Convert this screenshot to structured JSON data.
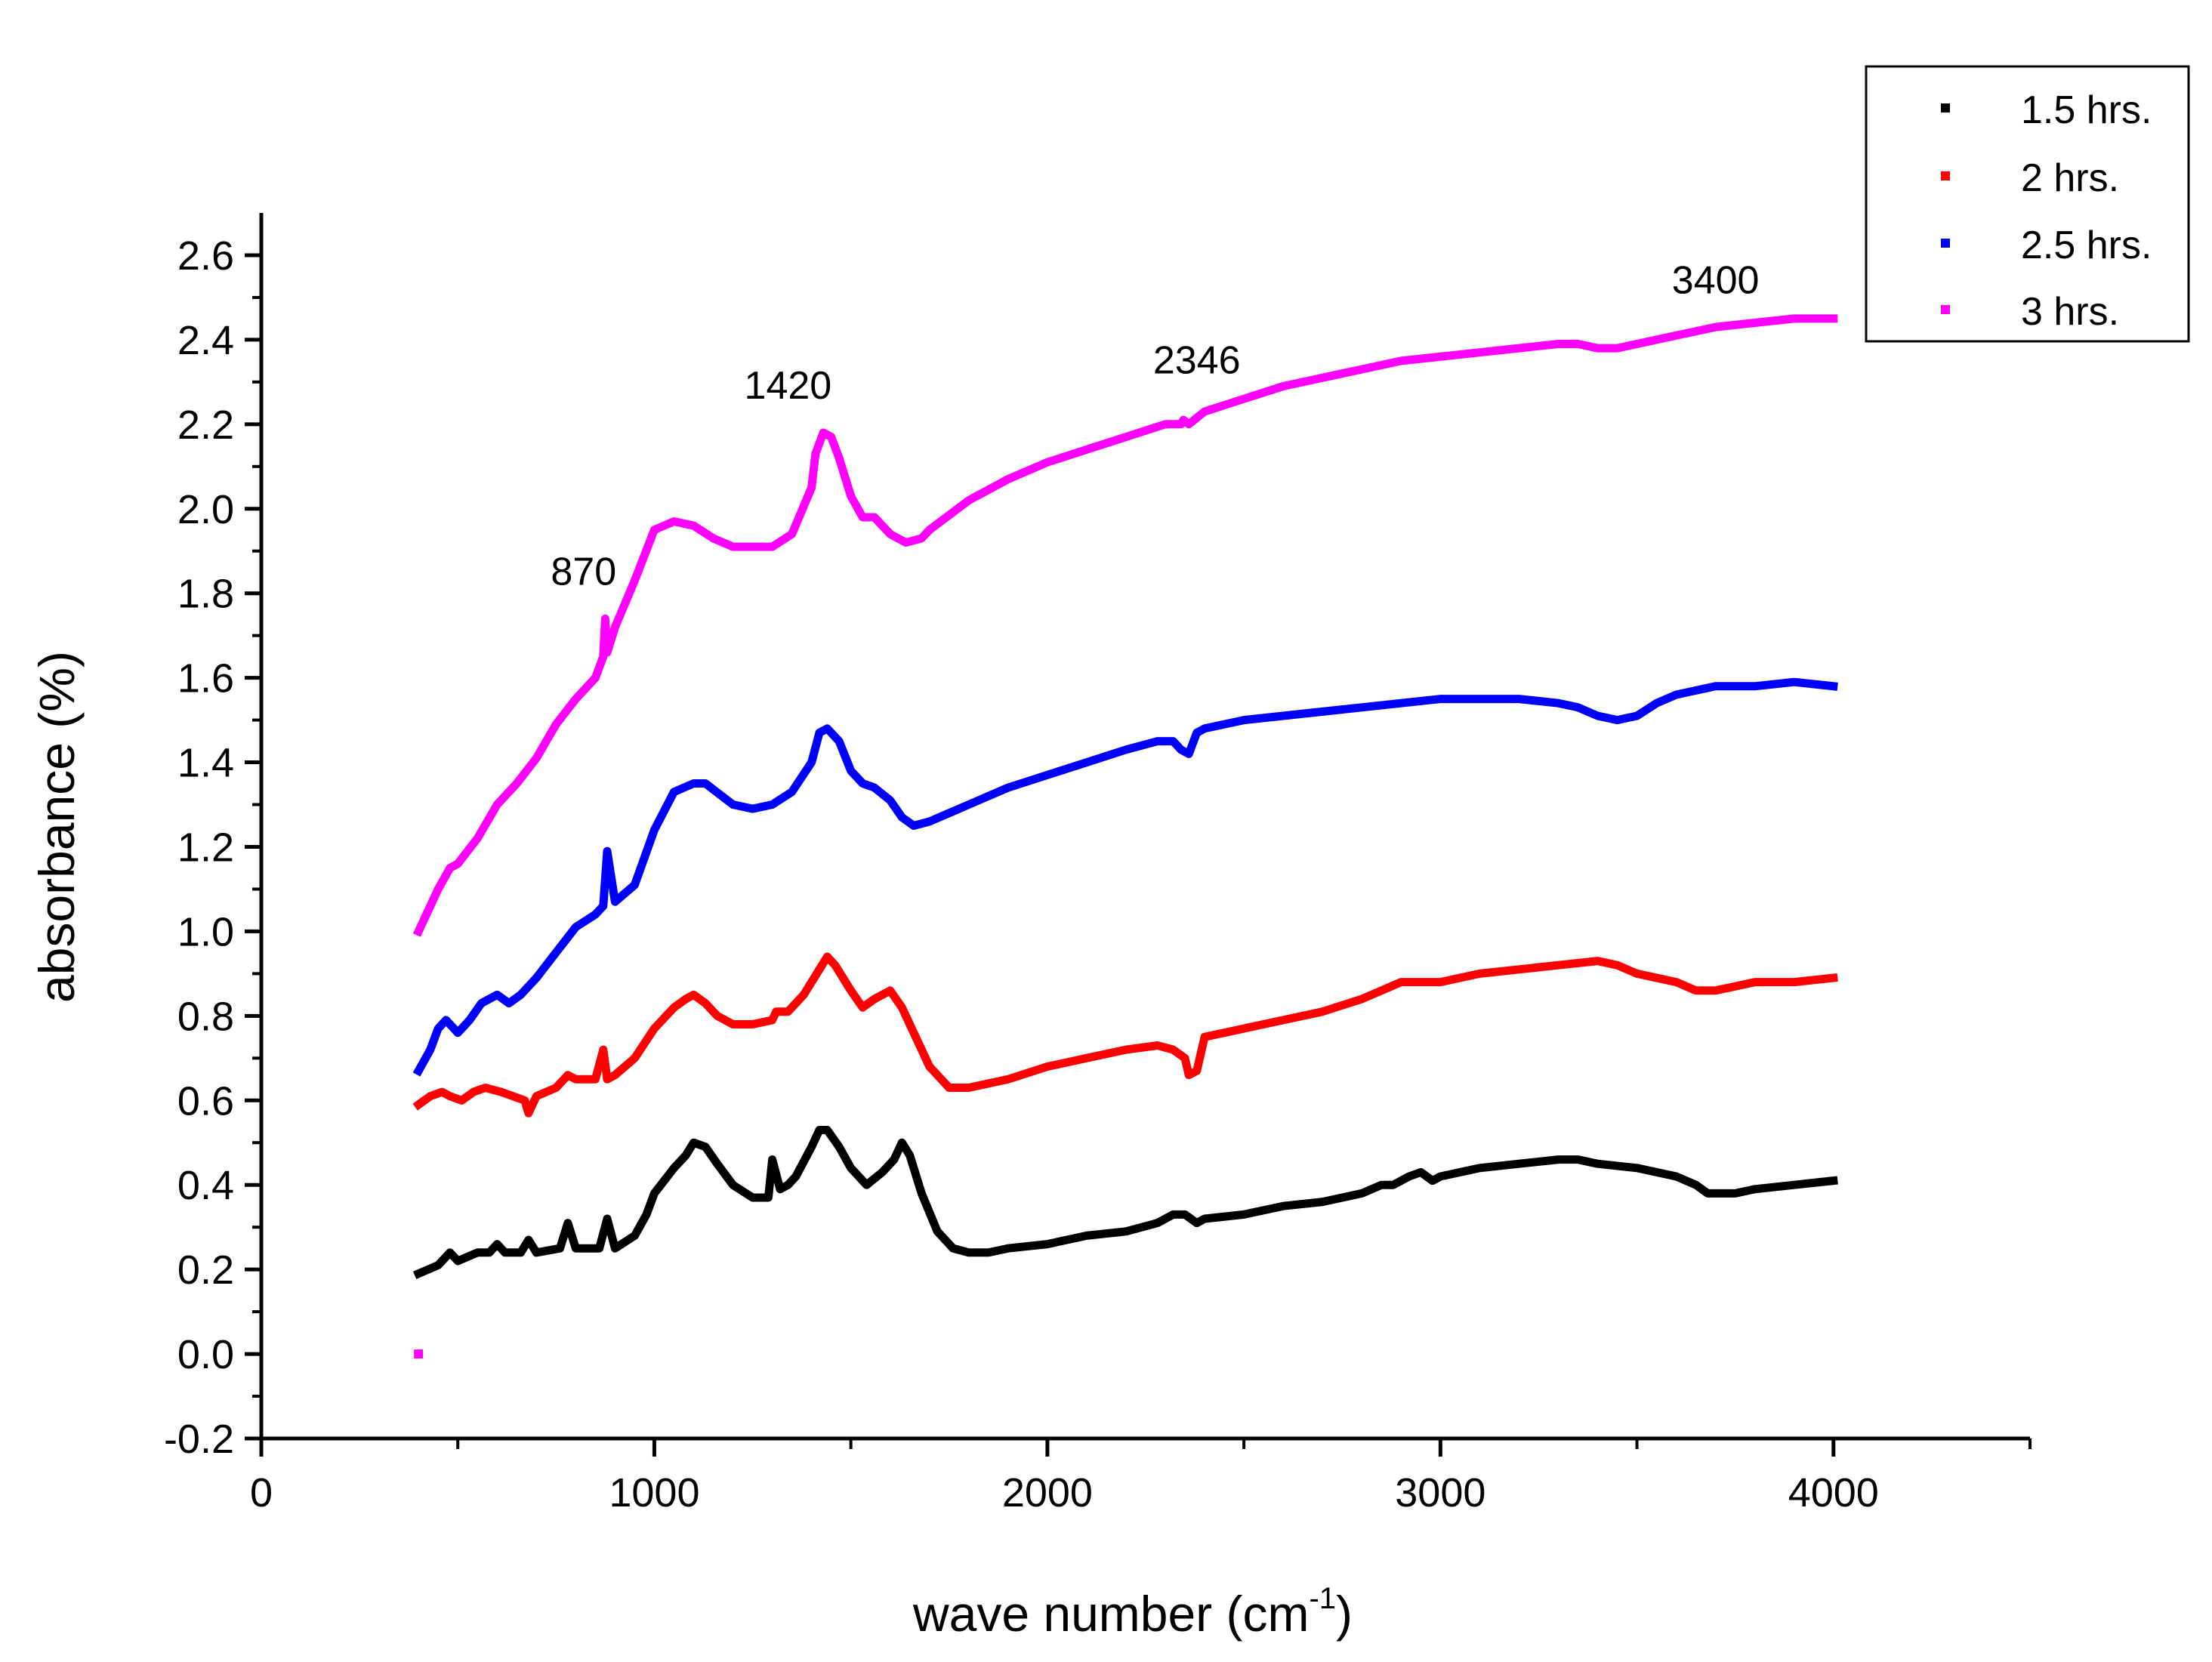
{
  "chart_data": {
    "type": "line",
    "title": "",
    "xlabel": "wave number (cm",
    "xlabel_sup": "-1",
    "xlabel_close": ")",
    "ylabel": "absorbance (%)",
    "xlim": [
      0,
      4500
    ],
    "ylim": [
      -0.2,
      2.7
    ],
    "x_ticks": [
      0,
      1000,
      2000,
      3000,
      4000
    ],
    "x_tick_labels": [
      "0",
      "1000",
      "2000",
      "3000",
      "4000"
    ],
    "y_ticks": [
      -0.2,
      0.0,
      0.2,
      0.4,
      0.6,
      0.8,
      1.0,
      1.2,
      1.4,
      1.6,
      1.8,
      2.0,
      2.2,
      2.4,
      2.6
    ],
    "y_tick_labels": [
      "-0.2",
      "0.0",
      "0.2",
      "0.4",
      "0.6",
      "0.8",
      "1.0",
      "1.2",
      "1.4",
      "1.6",
      "1.8",
      "2.0",
      "2.2",
      "2.4",
      "2.6"
    ],
    "grid": false,
    "legend_position": "top-right",
    "series": [
      {
        "name": "1.5 hrs.",
        "color": "#000000",
        "x": [
          400,
          450,
          480,
          500,
          550,
          580,
          600,
          620,
          660,
          680,
          700,
          760,
          780,
          800,
          860,
          880,
          900,
          950,
          980,
          1000,
          1050,
          1080,
          1100,
          1130,
          1160,
          1200,
          1250,
          1290,
          1300,
          1320,
          1340,
          1360,
          1400,
          1420,
          1440,
          1470,
          1500,
          1540,
          1580,
          1610,
          1630,
          1650,
          1680,
          1720,
          1760,
          1800,
          1850,
          1900,
          2000,
          2100,
          2200,
          2280,
          2320,
          2350,
          2380,
          2400,
          2500,
          2600,
          2700,
          2800,
          2850,
          2880,
          2920,
          2950,
          2980,
          3000,
          3050,
          3100,
          3200,
          3300,
          3350,
          3400,
          3500,
          3600,
          3650,
          3680,
          3750,
          3800,
          3900,
          4000
        ],
        "y": [
          0.19,
          0.21,
          0.24,
          0.22,
          0.24,
          0.24,
          0.26,
          0.24,
          0.24,
          0.27,
          0.24,
          0.25,
          0.31,
          0.25,
          0.25,
          0.32,
          0.25,
          0.28,
          0.33,
          0.38,
          0.44,
          0.47,
          0.5,
          0.49,
          0.45,
          0.4,
          0.37,
          0.37,
          0.46,
          0.39,
          0.4,
          0.42,
          0.49,
          0.53,
          0.53,
          0.49,
          0.44,
          0.4,
          0.43,
          0.46,
          0.5,
          0.47,
          0.38,
          0.29,
          0.25,
          0.24,
          0.24,
          0.25,
          0.26,
          0.28,
          0.29,
          0.31,
          0.33,
          0.33,
          0.31,
          0.32,
          0.33,
          0.35,
          0.36,
          0.38,
          0.4,
          0.4,
          0.42,
          0.43,
          0.41,
          0.42,
          0.43,
          0.44,
          0.45,
          0.46,
          0.46,
          0.45,
          0.44,
          0.42,
          0.4,
          0.38,
          0.38,
          0.39,
          0.4,
          0.41
        ]
      },
      {
        "name": "2 hrs.",
        "color": "#ff0000",
        "x": [
          400,
          430,
          460,
          480,
          510,
          540,
          570,
          610,
          640,
          670,
          680,
          700,
          750,
          780,
          800,
          850,
          870,
          880,
          900,
          950,
          1000,
          1050,
          1080,
          1100,
          1130,
          1160,
          1200,
          1250,
          1300,
          1310,
          1340,
          1380,
          1420,
          1440,
          1460,
          1500,
          1530,
          1560,
          1600,
          1630,
          1660,
          1700,
          1750,
          1800,
          1900,
          2000,
          2100,
          2200,
          2280,
          2320,
          2350,
          2360,
          2380,
          2400,
          2500,
          2600,
          2700,
          2800,
          2850,
          2900,
          3000,
          3100,
          3200,
          3300,
          3400,
          3450,
          3500,
          3600,
          3650,
          3700,
          3750,
          3800,
          3900,
          4000
        ],
        "y": [
          0.59,
          0.61,
          0.62,
          0.61,
          0.6,
          0.62,
          0.63,
          0.62,
          0.61,
          0.6,
          0.57,
          0.61,
          0.63,
          0.66,
          0.65,
          0.65,
          0.72,
          0.65,
          0.66,
          0.7,
          0.77,
          0.82,
          0.84,
          0.85,
          0.83,
          0.8,
          0.78,
          0.78,
          0.79,
          0.81,
          0.81,
          0.85,
          0.91,
          0.94,
          0.92,
          0.86,
          0.82,
          0.84,
          0.86,
          0.82,
          0.76,
          0.68,
          0.63,
          0.63,
          0.65,
          0.68,
          0.7,
          0.72,
          0.73,
          0.72,
          0.7,
          0.66,
          0.67,
          0.75,
          0.77,
          0.79,
          0.81,
          0.84,
          0.86,
          0.88,
          0.88,
          0.9,
          0.91,
          0.92,
          0.93,
          0.92,
          0.9,
          0.88,
          0.86,
          0.86,
          0.87,
          0.88,
          0.88,
          0.89
        ]
      },
      {
        "name": "2.5 hrs.",
        "color": "#0000ff",
        "x": [
          400,
          430,
          450,
          470,
          500,
          530,
          560,
          600,
          630,
          660,
          700,
          750,
          800,
          850,
          870,
          880,
          900,
          950,
          1000,
          1050,
          1100,
          1130,
          1200,
          1250,
          1300,
          1350,
          1400,
          1420,
          1440,
          1470,
          1500,
          1530,
          1560,
          1600,
          1630,
          1660,
          1700,
          1800,
          1900,
          2000,
          2100,
          2200,
          2280,
          2320,
          2340,
          2360,
          2380,
          2400,
          2500,
          2600,
          2700,
          2800,
          2900,
          3000,
          3100,
          3200,
          3300,
          3350,
          3400,
          3450,
          3500,
          3550,
          3600,
          3650,
          3700,
          3800,
          3900,
          4000
        ],
        "y": [
          0.67,
          0.72,
          0.77,
          0.79,
          0.76,
          0.79,
          0.83,
          0.85,
          0.83,
          0.85,
          0.89,
          0.95,
          1.01,
          1.04,
          1.06,
          1.19,
          1.07,
          1.11,
          1.24,
          1.33,
          1.35,
          1.35,
          1.3,
          1.29,
          1.3,
          1.33,
          1.4,
          1.47,
          1.48,
          1.45,
          1.38,
          1.35,
          1.34,
          1.31,
          1.27,
          1.25,
          1.26,
          1.3,
          1.34,
          1.37,
          1.4,
          1.43,
          1.45,
          1.45,
          1.43,
          1.42,
          1.47,
          1.48,
          1.5,
          1.51,
          1.52,
          1.53,
          1.54,
          1.55,
          1.55,
          1.55,
          1.54,
          1.53,
          1.51,
          1.5,
          1.51,
          1.54,
          1.56,
          1.57,
          1.58,
          1.58,
          1.59,
          1.58
        ]
      },
      {
        "name": "3 hrs.",
        "color": "#ff00ff",
        "x": [
          400,
          420,
          450,
          480,
          500,
          550,
          600,
          650,
          700,
          750,
          800,
          850,
          870,
          875,
          880,
          900,
          950,
          1000,
          1050,
          1100,
          1150,
          1200,
          1250,
          1300,
          1350,
          1400,
          1410,
          1430,
          1450,
          1470,
          1500,
          1530,
          1560,
          1600,
          1640,
          1680,
          1700,
          1800,
          1900,
          2000,
          2100,
          2200,
          2300,
          2340,
          2346,
          2360,
          2400,
          2500,
          2600,
          2700,
          2800,
          2900,
          3000,
          3100,
          3200,
          3300,
          3350,
          3400,
          3450,
          3500,
          3550,
          3600,
          3650,
          3700,
          3800,
          3900,
          4000
        ],
        "y": [
          1.0,
          1.04,
          1.1,
          1.15,
          1.16,
          1.22,
          1.3,
          1.35,
          1.41,
          1.49,
          1.55,
          1.6,
          1.65,
          1.74,
          1.66,
          1.72,
          1.83,
          1.95,
          1.97,
          1.96,
          1.93,
          1.91,
          1.91,
          1.91,
          1.94,
          2.05,
          2.13,
          2.18,
          2.17,
          2.12,
          2.03,
          1.98,
          1.98,
          1.94,
          1.92,
          1.93,
          1.95,
          2.02,
          2.07,
          2.11,
          2.14,
          2.17,
          2.2,
          2.2,
          2.21,
          2.2,
          2.23,
          2.26,
          2.29,
          2.31,
          2.33,
          2.35,
          2.36,
          2.37,
          2.38,
          2.39,
          2.39,
          2.38,
          2.38,
          2.39,
          2.4,
          2.41,
          2.42,
          2.43,
          2.44,
          2.45,
          2.45
        ]
      }
    ],
    "outlier_point": {
      "x": 400,
      "y": 0.0,
      "series": "3 hrs."
    },
    "annotations": [
      {
        "text": "870",
        "x": 820,
        "y": 1.82
      },
      {
        "text": "1420",
        "x": 1340,
        "y": 2.26
      },
      {
        "text": "2346",
        "x": 2380,
        "y": 2.32
      },
      {
        "text": "3400",
        "x": 3700,
        "y": 2.51
      }
    ]
  }
}
